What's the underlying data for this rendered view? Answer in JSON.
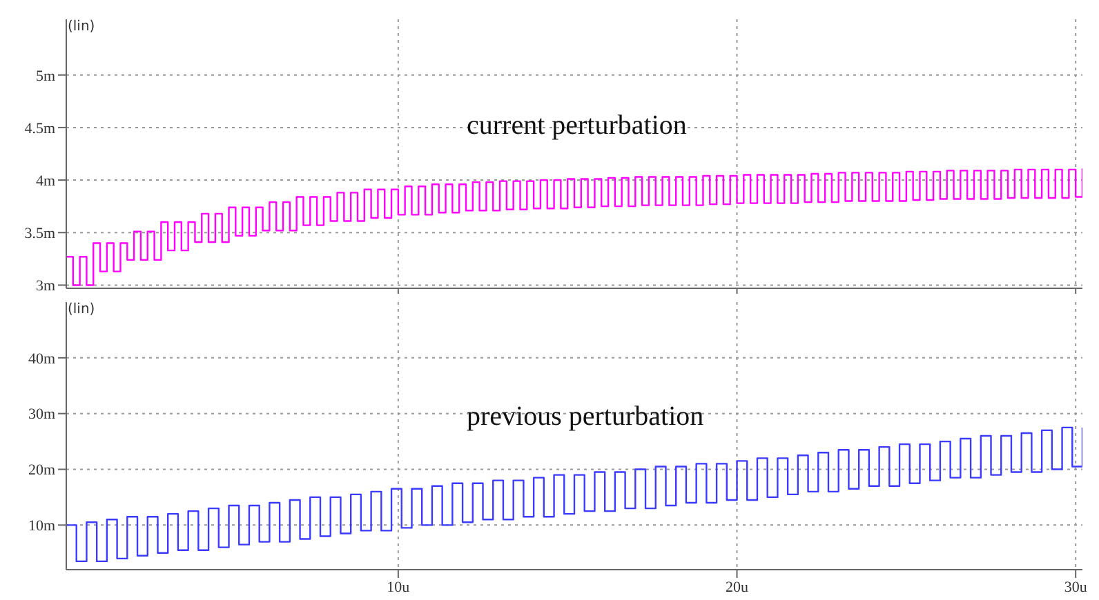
{
  "chart_data": [
    {
      "type": "step",
      "annotations": [
        "(lin)",
        "current perturbation"
      ],
      "xlim": [
        0.2,
        30.2
      ],
      "xticks": [
        {
          "value": 10,
          "label": null
        },
        {
          "value": 20,
          "label": null
        },
        {
          "value": 30,
          "label": null
        }
      ],
      "ylim": [
        2.97,
        5.53
      ],
      "yticks": [
        {
          "value": 3,
          "label": "3m"
        },
        {
          "value": 3.5,
          "label": "3.5m"
        },
        {
          "value": 4,
          "label": "4m"
        },
        {
          "value": 4.5,
          "label": "4.5m"
        },
        {
          "value": 5,
          "label": "5m"
        }
      ],
      "tick_labels": "y",
      "grid": true,
      "series": [
        {
          "color": "#ff00ff",
          "x": [
            0.2,
            0.4,
            0.6,
            0.8,
            1.0,
            1.2,
            1.4,
            1.6,
            1.8,
            2.0,
            2.2,
            2.4,
            2.6,
            2.8,
            3.0,
            3.2,
            3.4,
            3.6,
            3.8,
            4.0,
            4.2,
            4.4,
            4.6,
            4.8,
            5.0,
            5.2,
            5.4,
            5.6,
            5.8,
            6.0,
            6.2,
            6.4,
            6.6,
            6.8,
            7.0,
            7.2,
            7.4,
            7.6,
            7.8,
            8.0,
            8.2,
            8.4,
            8.6,
            8.8,
            9.0,
            9.2,
            9.4,
            9.6,
            9.8,
            10.0,
            10.2,
            10.4,
            10.6,
            10.8,
            11.0,
            11.2,
            11.4,
            11.6,
            11.8,
            12.0,
            12.2,
            12.4,
            12.6,
            12.8,
            13.0,
            13.2,
            13.4,
            13.6,
            13.8,
            14.0,
            14.2,
            14.4,
            14.6,
            14.8,
            15.0,
            15.2,
            15.4,
            15.6,
            15.8,
            16.0,
            16.2,
            16.4,
            16.6,
            16.8,
            17.0,
            17.2,
            17.4,
            17.6,
            17.8,
            18.0,
            18.2,
            18.4,
            18.6,
            18.8,
            19.0,
            19.2,
            19.4,
            19.6,
            19.8,
            20.0,
            20.2,
            20.4,
            20.6,
            20.8,
            21.0,
            21.2,
            21.4,
            21.6,
            21.8,
            22.0,
            22.2,
            22.4,
            22.6,
            22.8,
            23.0,
            23.2,
            23.4,
            23.6,
            23.8,
            24.0,
            24.2,
            24.4,
            24.6,
            24.8,
            25.0,
            25.2,
            25.4,
            25.6,
            25.8,
            26.0,
            26.2,
            26.4,
            26.6,
            26.8,
            27.0,
            27.2,
            27.4,
            27.6,
            27.8,
            28.0,
            28.2,
            28.4,
            28.6,
            28.8,
            29.0,
            29.2,
            29.4,
            29.6,
            29.8,
            30.0,
            30.2
          ],
          "values": [
            3.27,
            3.0,
            3.27,
            3.0,
            3.4,
            3.13,
            3.4,
            3.13,
            3.4,
            3.24,
            3.51,
            3.24,
            3.51,
            3.24,
            3.6,
            3.33,
            3.6,
            3.33,
            3.6,
            3.41,
            3.68,
            3.41,
            3.68,
            3.41,
            3.74,
            3.47,
            3.74,
            3.47,
            3.74,
            3.52,
            3.79,
            3.52,
            3.79,
            3.52,
            3.84,
            3.57,
            3.84,
            3.57,
            3.84,
            3.61,
            3.88,
            3.61,
            3.88,
            3.61,
            3.91,
            3.64,
            3.91,
            3.64,
            3.91,
            3.67,
            3.94,
            3.67,
            3.94,
            3.67,
            3.96,
            3.69,
            3.96,
            3.69,
            3.96,
            3.71,
            3.98,
            3.71,
            3.98,
            3.71,
            3.99,
            3.72,
            3.99,
            3.72,
            3.99,
            3.73,
            4.0,
            3.73,
            4.0,
            3.73,
            4.01,
            3.74,
            4.01,
            3.74,
            4.01,
            3.75,
            4.02,
            3.75,
            4.02,
            3.75,
            4.03,
            3.76,
            4.03,
            3.76,
            4.03,
            3.76,
            4.03,
            3.76,
            4.03,
            3.76,
            4.04,
            3.77,
            4.04,
            3.77,
            4.04,
            3.78,
            4.05,
            3.78,
            4.05,
            3.78,
            4.05,
            3.78,
            4.05,
            3.78,
            4.05,
            3.79,
            4.06,
            3.79,
            4.06,
            3.79,
            4.07,
            3.8,
            4.07,
            3.8,
            4.07,
            3.8,
            4.07,
            3.8,
            4.07,
            3.8,
            4.08,
            3.81,
            4.08,
            3.81,
            4.08,
            3.82,
            4.09,
            3.82,
            4.09,
            3.82,
            4.09,
            3.82,
            4.09,
            3.82,
            4.09,
            3.83,
            4.1,
            3.83,
            4.1,
            3.83,
            4.1,
            3.83,
            4.1,
            3.83,
            4.1,
            3.84,
            4.11
          ]
        }
      ]
    },
    {
      "type": "step",
      "annotations": [
        "(lin)",
        "previous perturbation"
      ],
      "xlim": [
        0.2,
        30.2
      ],
      "xticks": [
        {
          "value": 10,
          "label": "10u"
        },
        {
          "value": 20,
          "label": "20u"
        },
        {
          "value": 30,
          "label": "30u"
        }
      ],
      "ylim": [
        2,
        50
      ],
      "yticks": [
        {
          "value": 10,
          "label": "10m"
        },
        {
          "value": 20,
          "label": "20m"
        },
        {
          "value": 30,
          "label": "30m"
        },
        {
          "value": 40,
          "label": "40m"
        }
      ],
      "grid": true,
      "series": [
        {
          "color": "#3b3bff",
          "x": [
            0.2,
            0.5,
            0.8,
            1.1,
            1.4,
            1.7,
            2.0,
            2.3,
            2.6,
            2.9,
            3.2,
            3.5,
            3.8,
            4.1,
            4.4,
            4.7,
            5.0,
            5.3,
            5.6,
            5.9,
            6.2,
            6.5,
            6.8,
            7.1,
            7.4,
            7.7,
            8.0,
            8.3,
            8.6,
            8.9,
            9.2,
            9.5,
            9.8,
            10.1,
            10.4,
            10.7,
            11.0,
            11.3,
            11.6,
            11.9,
            12.2,
            12.5,
            12.8,
            13.1,
            13.4,
            13.7,
            14.0,
            14.3,
            14.6,
            14.9,
            15.2,
            15.5,
            15.8,
            16.1,
            16.4,
            16.7,
            17.0,
            17.3,
            17.6,
            17.9,
            18.2,
            18.5,
            18.8,
            19.1,
            19.4,
            19.7,
            20.0,
            20.3,
            20.6,
            20.9,
            21.2,
            21.5,
            21.8,
            22.1,
            22.4,
            22.7,
            23.0,
            23.3,
            23.6,
            23.9,
            24.2,
            24.5,
            24.8,
            25.1,
            25.4,
            25.7,
            26.0,
            26.3,
            26.6,
            26.9,
            27.2,
            27.5,
            27.8,
            28.1,
            28.4,
            28.7,
            29.0,
            29.3,
            29.6,
            29.9,
            30.2
          ],
          "values": [
            10,
            3.5,
            10.5,
            3.5,
            11,
            4,
            11.5,
            4.5,
            11.5,
            5,
            12,
            5.5,
            12.5,
            5.5,
            13,
            6,
            13.5,
            6.5,
            13.5,
            7,
            14,
            7,
            14.5,
            7.5,
            15,
            8,
            15,
            8.5,
            15.5,
            9,
            16,
            9,
            16.5,
            9.5,
            16.5,
            10,
            17,
            10,
            17.5,
            10.5,
            17.5,
            11,
            18,
            11,
            18,
            11.5,
            18.5,
            11.5,
            19,
            12,
            19,
            12.5,
            19.5,
            12.5,
            19.5,
            13,
            20,
            13,
            20.5,
            13.5,
            20.5,
            14,
            21,
            14,
            21,
            14.5,
            21.5,
            14.5,
            22,
            15,
            22,
            15.5,
            22.5,
            16,
            23,
            16,
            23.5,
            16.5,
            23.5,
            17,
            24,
            17,
            24.5,
            17.5,
            24.5,
            18,
            25,
            18.5,
            25.5,
            18.5,
            26,
            19,
            26,
            19.5,
            26.5,
            19.5,
            27,
            20,
            27.5,
            20.5,
            27.5
          ]
        }
      ]
    }
  ]
}
